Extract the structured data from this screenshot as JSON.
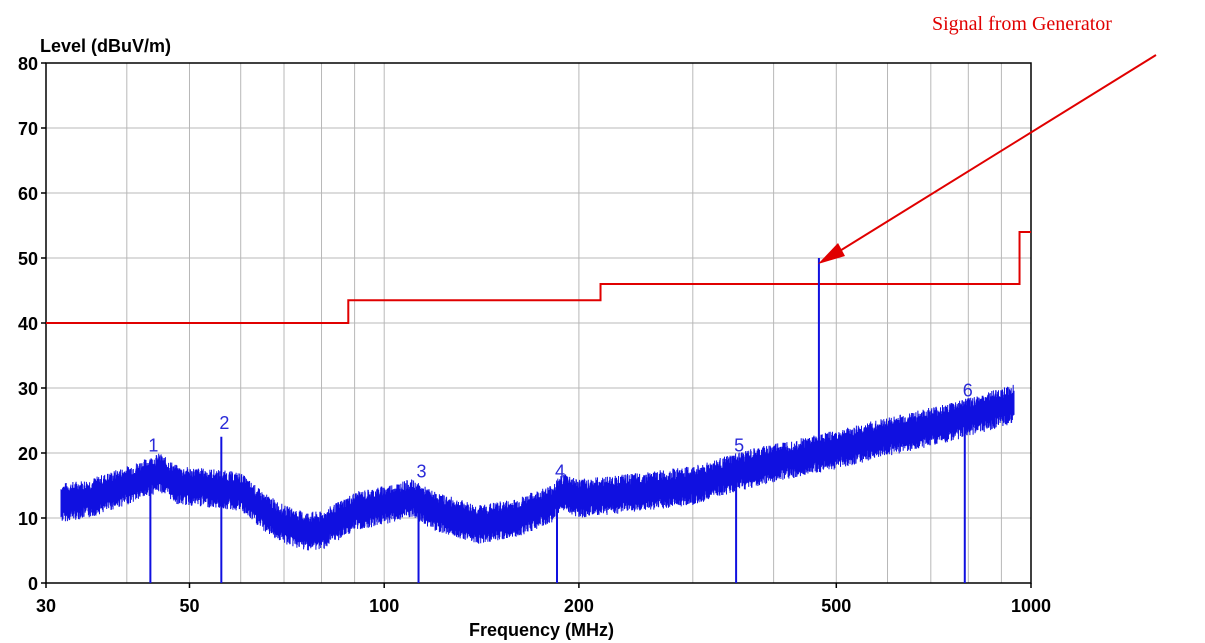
{
  "chart_data": {
    "type": "line",
    "ylabel": "Level (dBuV/m)",
    "xlabel": "Frequency (MHz)",
    "x_scale": "log",
    "xlim": [
      30,
      1000
    ],
    "ylim": [
      0,
      80
    ],
    "grid": true,
    "y_ticks": [
      "0",
      "10",
      "20",
      "30",
      "40",
      "50",
      "60",
      "70",
      "80"
    ],
    "x_ticks": [
      {
        "value": 30,
        "label": "30"
      },
      {
        "value": 50,
        "label": "50"
      },
      {
        "value": 100,
        "label": "100"
      },
      {
        "value": 200,
        "label": "200"
      },
      {
        "value": 500,
        "label": "500"
      },
      {
        "value": 1000,
        "label": "1000"
      }
    ],
    "x_minor_grid": [
      40,
      60,
      70,
      80,
      90,
      300,
      400,
      600,
      700,
      800,
      900
    ],
    "limit_line": {
      "color": "#e00000",
      "points": [
        [
          30,
          40
        ],
        [
          88,
          40
        ],
        [
          88,
          43.5
        ],
        [
          216,
          43.5
        ],
        [
          216,
          46
        ],
        [
          960,
          46
        ],
        [
          960,
          54
        ],
        [
          1000,
          54
        ]
      ]
    },
    "noise_trace": {
      "color": "#1010e0",
      "points": [
        [
          30,
          12
        ],
        [
          35,
          13
        ],
        [
          40,
          15
        ],
        [
          45,
          17
        ],
        [
          48,
          15
        ],
        [
          55,
          14.5
        ],
        [
          60,
          14
        ],
        [
          65,
          11
        ],
        [
          70,
          9
        ],
        [
          75,
          8
        ],
        [
          80,
          8
        ],
        [
          90,
          11
        ],
        [
          100,
          12
        ],
        [
          110,
          13
        ],
        [
          120,
          11
        ],
        [
          140,
          9
        ],
        [
          160,
          10
        ],
        [
          180,
          12
        ],
        [
          190,
          14
        ],
        [
          200,
          13
        ],
        [
          250,
          14
        ],
        [
          300,
          15
        ],
        [
          350,
          17
        ],
        [
          400,
          18.5
        ],
        [
          500,
          20.5
        ],
        [
          600,
          22.5
        ],
        [
          700,
          24
        ],
        [
          800,
          25.5
        ],
        [
          900,
          27
        ],
        [
          1000,
          28.5
        ]
      ]
    },
    "markers": [
      {
        "label": "1",
        "x": 43.5,
        "y": 19
      },
      {
        "label": "2",
        "x": 56,
        "y": 22.5
      },
      {
        "label": "3",
        "x": 113,
        "y": 15
      },
      {
        "label": "4",
        "x": 185,
        "y": 15
      },
      {
        "label": "5",
        "x": 350,
        "y": 19
      },
      {
        "label": "6",
        "x": 790,
        "y": 27.5
      }
    ],
    "generator_spike": {
      "x": 470,
      "y": 50
    }
  },
  "annotation": {
    "text": "Signal from Generator",
    "color": "#e00000"
  }
}
